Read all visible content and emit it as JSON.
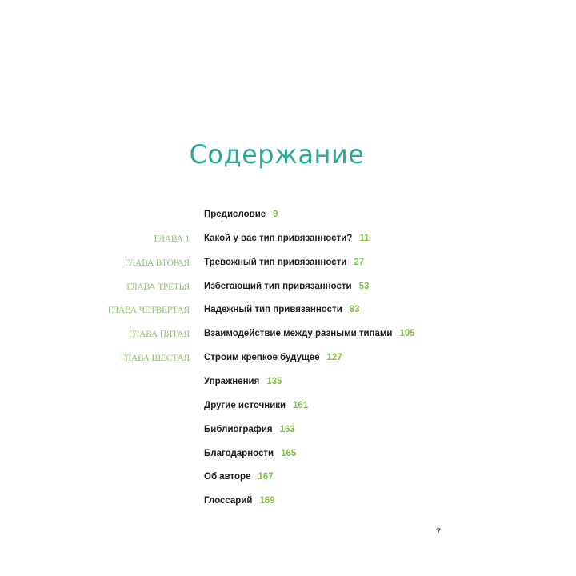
{
  "title": "Содержание",
  "entries": [
    {
      "chapter": "",
      "title": "Предисловие",
      "page": "9"
    },
    {
      "chapter": "ГЛАВА 1",
      "title": "Какой у вас тип привязанности?",
      "page": "11"
    },
    {
      "chapter": "ГЛАВА ВТОРАЯ",
      "title": "Тревожный тип привязанности",
      "page": "27"
    },
    {
      "chapter": "ГЛАВА ТРЕТЬЯ",
      "title": "Избегающий тип привязанности",
      "page": "53"
    },
    {
      "chapter": "ГЛАВА ЧЕТВЕРТАЯ",
      "title": "Надежный тип привязанности",
      "page": "83"
    },
    {
      "chapter": "ГЛАВА ПЯТАЯ",
      "title": "Взаимодействие между разными типами",
      "page": "105"
    },
    {
      "chapter": "ГЛАВА ШЕСТАЯ",
      "title": "Строим крепкое будущее",
      "page": "127"
    },
    {
      "chapter": "",
      "title": "Упражнения",
      "page": "135"
    },
    {
      "chapter": "",
      "title": "Другие источники",
      "page": "161"
    },
    {
      "chapter": "",
      "title": "Библиография",
      "page": "163"
    },
    {
      "chapter": "",
      "title": "Благодарности",
      "page": "165"
    },
    {
      "chapter": "",
      "title": "Об авторе",
      "page": "167"
    },
    {
      "chapter": "",
      "title": "Глоссарий",
      "page": "169"
    }
  ],
  "page_number": "7",
  "colors": {
    "title": "#2ba79a",
    "page_numbers": "#7dc242",
    "chapter_labels": "#8cc46b"
  }
}
